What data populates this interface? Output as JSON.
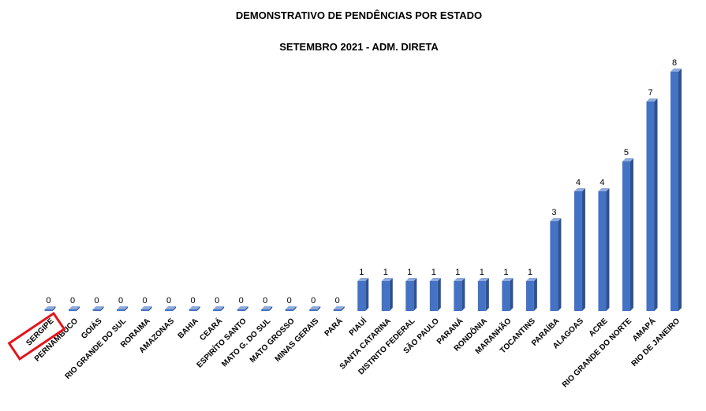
{
  "chart_data": {
    "type": "bar",
    "title": "DEMONSTRATIVO DE PENDÊNCIAS POR ESTADO",
    "subtitle": "SETEMBRO 2021 - ADM. DIRETA",
    "categories": [
      "SERGIPE",
      "PERNAMBUCO",
      "GOIÁS",
      "RIO GRANDE DO SUL",
      "RORAIMA",
      "AMAZONAS",
      "BAHIA",
      "CEARÁ",
      "ESPIRÍTO SANTO",
      "MATO G. DO SUL",
      "MATO GROSSO",
      "MINAS GERAIS",
      "PARÁ",
      "PIAUÍ",
      "SANTA CATARINA",
      "DISTRITO FEDERAL",
      "SÃO PAULO",
      "PARANÁ",
      "RONDÔNIA",
      "MARANHÃO",
      "TOCANTINS",
      "PARAÍBA",
      "ALAGOAS",
      "ACRE",
      "RIO GRANDE DO NORTE",
      "AMAPÁ",
      "RIO DE JANEIRO"
    ],
    "values": [
      0,
      0,
      0,
      0,
      0,
      0,
      0,
      0,
      0,
      0,
      0,
      0,
      0,
      1,
      1,
      1,
      1,
      1,
      1,
      1,
      1,
      3,
      4,
      4,
      5,
      7,
      8
    ],
    "ylim": [
      0,
      8
    ],
    "grid": false,
    "legend": "none",
    "highlighted_category": "SERGIPE",
    "colors": {
      "bar_front": "#4472C4",
      "bar_side": "#2F528F",
      "bar_top": "#8FAADC",
      "highlight_box": "#E3141C",
      "text": "#000000"
    }
  }
}
